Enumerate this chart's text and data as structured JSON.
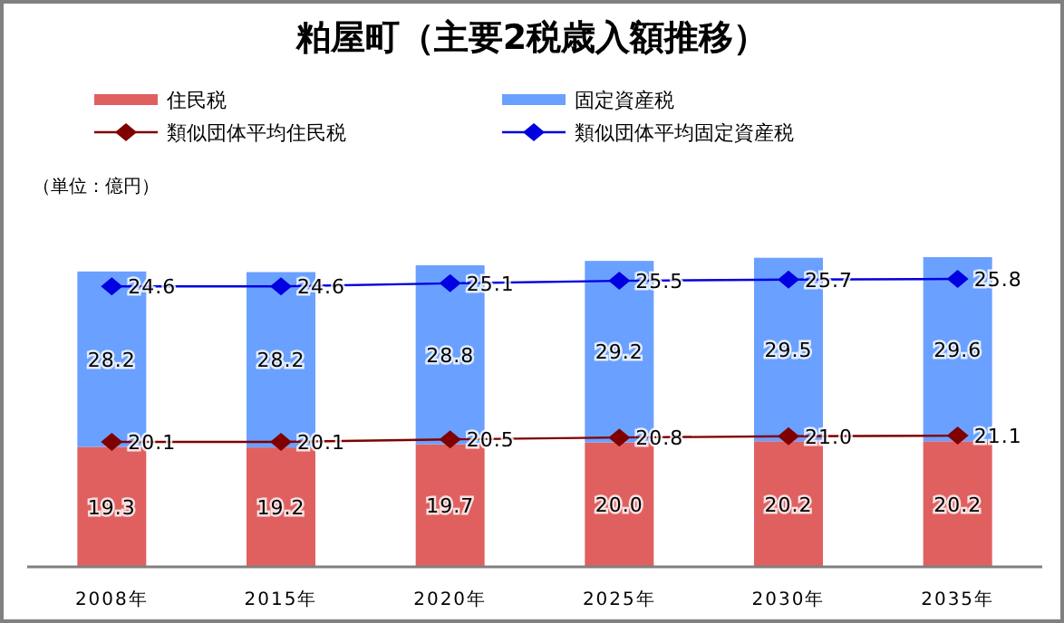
{
  "chart_data": {
    "type": "bar",
    "title": "粕屋町（主要2税歳入額推移）",
    "annotations": [
      "（単位：億円）"
    ],
    "categories": [
      "2008年",
      "2015年",
      "2020年",
      "2025年",
      "2030年",
      "2035年"
    ],
    "stacked": true,
    "data_labels": true,
    "legend": "top",
    "y2lim": [
      -20.5,
      29.3
    ],
    "series": [
      {
        "name": "住民税",
        "color": "#e06060",
        "values": [
          19.3,
          19.2,
          19.7,
          20.0,
          20.2,
          20.2
        ],
        "value_labels": [
          "19.3",
          "19.2",
          "19.7",
          "20.0",
          "20.2",
          "20.2"
        ]
      },
      {
        "name": "固定資産税",
        "color": "#6aa0ff",
        "values": [
          28.2,
          28.2,
          28.8,
          29.2,
          29.5,
          29.6
        ]
      },
      {
        "name": "類似団体平均住民税",
        "type": "line",
        "color": "#800000",
        "marker": "diamond",
        "values": [
          20.1,
          20.1,
          20.5,
          20.8,
          21.0,
          21.1
        ],
        "value_labels": [
          "20.1",
          "20.1",
          "20.5",
          "20.8",
          "21.0",
          "21.1"
        ]
      },
      {
        "name": "類似団体平均固定資産税",
        "type": "line",
        "color": "#0000e0",
        "marker": "diamond",
        "axis": "y2",
        "values": [
          24.6,
          24.6,
          25.1,
          25.5,
          25.7,
          25.8
        ]
      }
    ]
  }
}
